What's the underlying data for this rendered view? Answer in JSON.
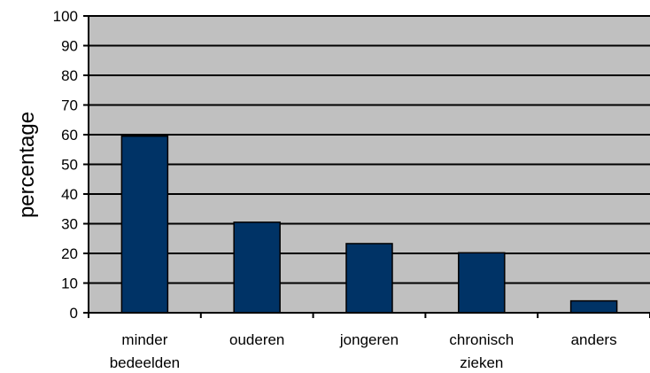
{
  "chart_data": {
    "type": "bar",
    "categories": [
      [
        "minder",
        "bedeelden"
      ],
      [
        "ouderen"
      ],
      [
        "jongeren"
      ],
      [
        "chronisch",
        "zieken"
      ],
      [
        "anders"
      ]
    ],
    "values": [
      59.5,
      30.5,
      23.3,
      20.2,
      4.0
    ],
    "ylabel": "percentage",
    "ylim": [
      0,
      100
    ],
    "yticks": [
      0,
      10,
      20,
      30,
      40,
      50,
      60,
      70,
      80,
      90,
      100
    ],
    "grid": true,
    "colors": {
      "bar_fill": "#003366",
      "bar_stroke": "#000000",
      "plot_background": "#c0c0c0",
      "gridline": "#000000"
    }
  }
}
